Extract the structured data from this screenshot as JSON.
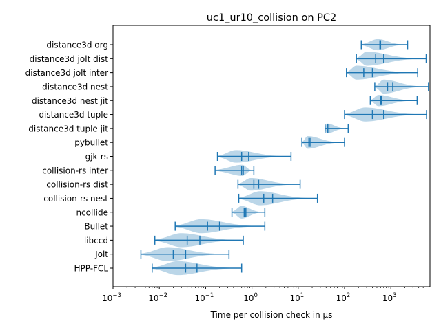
{
  "chart_data": {
    "type": "violin",
    "title": "uc1_ur10_collision on PC2",
    "xlabel": "Time per collision check in µs",
    "ylabel": "",
    "x_scale": "log",
    "xlim": [
      0.001,
      7000
    ],
    "x_ticks": [
      {
        "value": 0.001,
        "base": "10",
        "exp": "−3"
      },
      {
        "value": 0.01,
        "base": "10",
        "exp": "−2"
      },
      {
        "value": 0.1,
        "base": "10",
        "exp": "−1"
      },
      {
        "value": 1,
        "base": "10",
        "exp": "0"
      },
      {
        "value": 10,
        "base": "10",
        "exp": "1"
      },
      {
        "value": 100,
        "base": "10",
        "exp": "2"
      },
      {
        "value": 1000,
        "base": "10",
        "exp": "3"
      }
    ],
    "grid": false,
    "colors": {
      "line": "#1f77b4",
      "fill": "#1f77b4",
      "fill_opacity": 0.3
    },
    "series": [
      {
        "name": "distance3d org",
        "min": 230,
        "max": 2300,
        "mean": 600,
        "median": 580,
        "mode": 520,
        "width": 0.4
      },
      {
        "name": "distance3d jolt dist",
        "min": 180,
        "max": 5800,
        "mean": 700,
        "median": 470,
        "mode": 300,
        "width": 0.5
      },
      {
        "name": "distance3d jolt inter",
        "min": 110,
        "max": 3800,
        "mean": 400,
        "median": 260,
        "mode": 180,
        "width": 0.5
      },
      {
        "name": "distance3d nest",
        "min": 450,
        "max": 6500,
        "mean": 1100,
        "median": 850,
        "mode": 700,
        "width": 0.5
      },
      {
        "name": "distance3d nest jit",
        "min": 360,
        "max": 3700,
        "mean": 620,
        "median": 600,
        "mode": 540,
        "width": 0.4
      },
      {
        "name": "distance3d tuple",
        "min": 100,
        "max": 5900,
        "mean": 700,
        "median": 400,
        "mode": 280,
        "width": 0.5
      },
      {
        "name": "distance3d tuple jit",
        "min": 38,
        "max": 120,
        "mean": 46,
        "median": 43,
        "mode": 42,
        "width": 0.35
      },
      {
        "name": "pybullet",
        "min": 12,
        "max": 100,
        "mean": 18,
        "median": 17,
        "mode": 16,
        "width": 0.45
      },
      {
        "name": "gjk-rs",
        "min": 0.18,
        "max": 7,
        "mean": 0.85,
        "median": 0.6,
        "mode": 0.45,
        "width": 0.45
      },
      {
        "name": "collision-rs inter",
        "min": 0.16,
        "max": 1.1,
        "mean": 0.65,
        "median": 0.6,
        "mode": 0.62,
        "width": 0.4
      },
      {
        "name": "collision-rs dist",
        "min": 0.5,
        "max": 11,
        "mean": 1.4,
        "median": 1.1,
        "mode": 0.95,
        "width": 0.45
      },
      {
        "name": "collision-rs nest",
        "min": 0.52,
        "max": 26,
        "mean": 2.8,
        "median": 1.8,
        "mode": 1.5,
        "width": 0.5
      },
      {
        "name": "ncollide",
        "min": 0.37,
        "max": 1.9,
        "mean": 0.74,
        "median": 0.68,
        "mode": 0.6,
        "width": 0.45
      },
      {
        "name": "Bullet",
        "min": 0.022,
        "max": 1.9,
        "mean": 0.2,
        "median": 0.11,
        "mode": 0.08,
        "width": 0.5
      },
      {
        "name": "libccd",
        "min": 0.008,
        "max": 0.65,
        "mean": 0.075,
        "median": 0.04,
        "mode": 0.03,
        "width": 0.5
      },
      {
        "name": "Jolt",
        "min": 0.004,
        "max": 0.32,
        "mean": 0.037,
        "median": 0.02,
        "mode": 0.015,
        "width": 0.5
      },
      {
        "name": "HPP-FCL",
        "min": 0.007,
        "max": 0.6,
        "mean": 0.065,
        "median": 0.037,
        "mode": 0.025,
        "width": 0.5
      }
    ]
  }
}
